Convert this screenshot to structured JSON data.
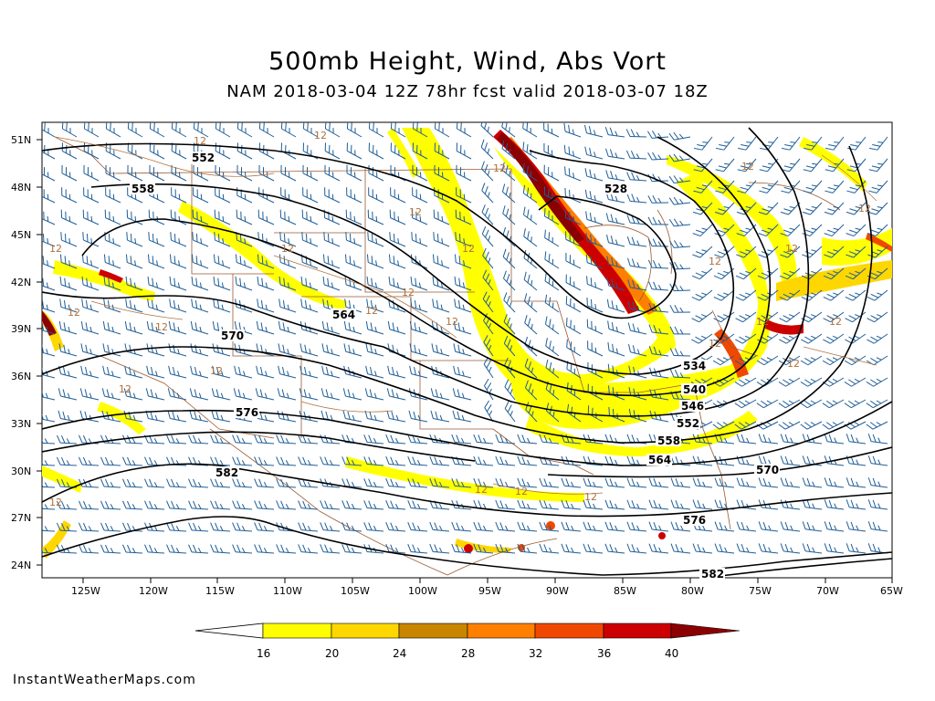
{
  "title": "500mb Height, Wind, Abs Vort",
  "subtitle": "NAM 2018-03-04 12Z 78hr fcst valid 2018-03-07 18Z",
  "credit": "InstantWeatherMaps.com",
  "lat_labels": [
    "51N",
    "48N",
    "45N",
    "42N",
    "39N",
    "36N",
    "33N",
    "30N",
    "27N",
    "24N"
  ],
  "lon_labels": [
    "125W",
    "120W",
    "115W",
    "110W",
    "105W",
    "100W",
    "95W",
    "90W",
    "85W",
    "80W",
    "75W",
    "70W",
    "65W"
  ],
  "height_contour_labels": [
    "552",
    "558",
    "564",
    "570",
    "576",
    "582",
    "528",
    "534",
    "540",
    "546",
    "552",
    "558",
    "564",
    "570",
    "576",
    "582"
  ],
  "vort_label": "12",
  "colorbar": {
    "ticks": [
      "16",
      "20",
      "24",
      "28",
      "32",
      "36",
      "40"
    ],
    "colors": [
      "#ffff00",
      "#ffd700",
      "#c98500",
      "#ff7f00",
      "#f04800",
      "#cc0000",
      "#8b0000"
    ]
  },
  "colors": {
    "contour": "#000000",
    "wind_barbs": "#1f5e96",
    "borders": "#9b5a32",
    "vort_outline": "#b0703a"
  }
}
